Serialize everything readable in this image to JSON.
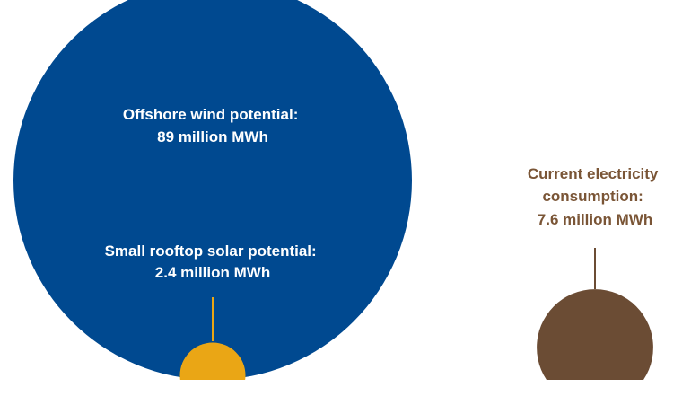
{
  "chart_data": {
    "type": "bubble",
    "bubbles": [
      {
        "name": "Offshore wind potential",
        "value": 89,
        "unit": "million MWh",
        "color": "#004990",
        "label_lines": [
          "Offshore wind potential:",
          "89 million MWh"
        ],
        "label_color": "#ffffff"
      },
      {
        "name": "Small rooftop solar potential",
        "value": 2.4,
        "unit": "million MWh",
        "color": "#eaa615",
        "label_lines": [
          "Small rooftop solar potential:",
          "2.4 million MWh"
        ],
        "label_color": "#ffffff"
      },
      {
        "name": "Current electricity consumption",
        "value": 7.6,
        "unit": "million MWh",
        "color": "#6b4c34",
        "label_lines": [
          "Current electricity consumption:",
          "7.6 million MWh"
        ],
        "label_color": "#7a5536"
      }
    ]
  }
}
